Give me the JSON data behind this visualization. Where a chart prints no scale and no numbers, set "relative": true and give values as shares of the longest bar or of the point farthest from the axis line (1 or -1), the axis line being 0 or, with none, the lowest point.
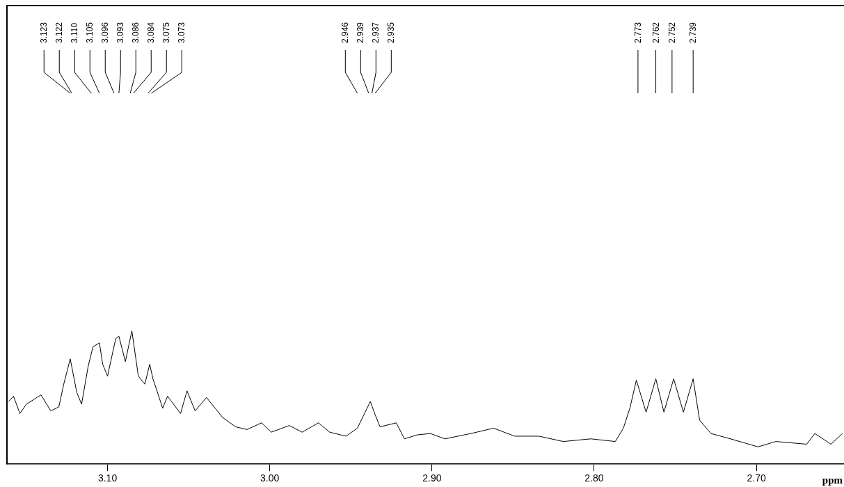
{
  "chart_data": {
    "type": "line",
    "relative": true,
    "xlabel": "ppm",
    "xlim": [
      3.162,
      2.646
    ],
    "xticks": [
      {
        "value": 3.1,
        "label": "3.10"
      },
      {
        "value": 3,
        "label": "3.00"
      },
      {
        "value": 2.9,
        "label": "2.90"
      },
      {
        "value": 2.8,
        "label": "2.80"
      },
      {
        "value": 2.7,
        "label": "2.70"
      }
    ],
    "x": [
      3.161,
      3.158,
      3.154,
      3.15,
      3.141,
      3.135,
      3.13,
      3.127,
      3.123,
      3.119,
      3.116,
      3.112,
      3.109,
      3.105,
      3.103,
      3.1,
      3.095,
      3.093,
      3.089,
      3.085,
      3.081,
      3.077,
      3.074,
      3.072,
      3.066,
      3.063,
      3.055,
      3.051,
      3.046,
      3.039,
      3.029,
      3.021,
      3.014,
      3.005,
      2.999,
      2.988,
      2.98,
      2.97,
      2.963,
      2.953,
      2.946,
      2.938,
      2.935,
      2.932,
      2.922,
      2.917,
      2.909,
      2.901,
      2.892,
      2.876,
      2.862,
      2.849,
      2.834,
      2.819,
      2.802,
      2.787,
      2.782,
      2.778,
      2.774,
      2.768,
      2.762,
      2.757,
      2.751,
      2.745,
      2.739,
      2.735,
      2.728,
      2.716,
      2.699,
      2.688,
      2.669,
      2.664,
      2.654,
      2.647
    ],
    "series": [
      {
        "color": "#000000",
        "values": [
          0.47,
          0.51,
          0.38,
          0.45,
          0.52,
          0.4,
          0.43,
          0.6,
          0.79,
          0.54,
          0.45,
          0.73,
          0.88,
          0.91,
          0.75,
          0.66,
          0.94,
          0.96,
          0.77,
          1,
          0.66,
          0.6,
          0.75,
          0.64,
          0.42,
          0.51,
          0.38,
          0.55,
          0.4,
          0.5,
          0.35,
          0.28,
          0.26,
          0.31,
          0.24,
          0.29,
          0.24,
          0.31,
          0.24,
          0.21,
          0.27,
          0.47,
          0.37,
          0.28,
          0.31,
          0.19,
          0.22,
          0.23,
          0.19,
          0.23,
          0.27,
          0.21,
          0.21,
          0.17,
          0.19,
          0.17,
          0.27,
          0.42,
          0.63,
          0.39,
          0.64,
          0.39,
          0.64,
          0.39,
          0.64,
          0.33,
          0.23,
          0.19,
          0.13,
          0.17,
          0.15,
          0.23,
          0.15,
          0.23
        ]
      }
    ],
    "marker": "none",
    "grid": false,
    "legend": false,
    "annotations": [
      {
        "text": "3.123",
        "x": 3.123
      },
      {
        "text": "3.122",
        "x": 3.122
      },
      {
        "text": "3.110",
        "x": 3.11
      },
      {
        "text": "3.105",
        "x": 3.105
      },
      {
        "text": "3.096",
        "x": 3.096
      },
      {
        "text": "3.093",
        "x": 3.093
      },
      {
        "text": "3.086",
        "x": 3.086
      },
      {
        "text": "3.084",
        "x": 3.084
      },
      {
        "text": "3.075",
        "x": 3.075
      },
      {
        "text": "3.073",
        "x": 3.073
      },
      {
        "text": "2.946",
        "x": 2.946
      },
      {
        "text": "2.939",
        "x": 2.939
      },
      {
        "text": "2.937",
        "x": 2.937
      },
      {
        "text": "2.935",
        "x": 2.935
      },
      {
        "text": "2.773",
        "x": 2.773
      },
      {
        "text": "2.762",
        "x": 2.762
      },
      {
        "text": "2.752",
        "x": 2.752
      },
      {
        "text": "2.739",
        "x": 2.739
      }
    ]
  }
}
